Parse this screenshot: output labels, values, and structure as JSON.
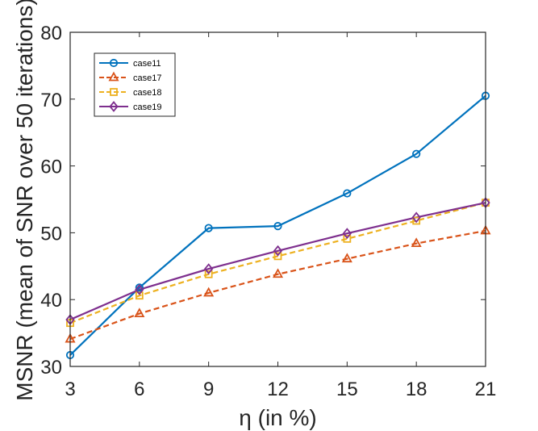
{
  "chart_data": {
    "type": "line",
    "title": "",
    "xlabel": "η (in %)",
    "ylabel": "MSNR (mean of SNR over 50 iterations)",
    "x": [
      3,
      6,
      9,
      12,
      15,
      18,
      21
    ],
    "xlim": [
      3,
      21
    ],
    "ylim": [
      30,
      80
    ],
    "xticks": [
      "3",
      "6",
      "9",
      "12",
      "15",
      "18",
      "21"
    ],
    "yticks": [
      "30",
      "40",
      "50",
      "60",
      "70",
      "80"
    ],
    "grid": false,
    "legend_position": "top-left",
    "series": [
      {
        "name": "case11",
        "color": "#0072BD",
        "dash": "solid",
        "marker": "circle",
        "values": [
          31.7,
          41.8,
          50.7,
          51.0,
          55.9,
          61.8,
          70.5
        ]
      },
      {
        "name": "case17",
        "color": "#D95319",
        "dash": "dashed",
        "marker": "triangle",
        "values": [
          34.1,
          37.9,
          41.0,
          43.8,
          46.1,
          48.4,
          50.3
        ]
      },
      {
        "name": "case18",
        "color": "#EDB120",
        "dash": "dashed",
        "marker": "square",
        "values": [
          36.5,
          40.6,
          43.8,
          46.5,
          49.1,
          51.8,
          54.5
        ]
      },
      {
        "name": "case19",
        "color": "#7E2F8E",
        "dash": "solid",
        "marker": "diamond",
        "values": [
          37.0,
          41.5,
          44.6,
          47.3,
          49.9,
          52.3,
          54.5
        ]
      }
    ]
  }
}
